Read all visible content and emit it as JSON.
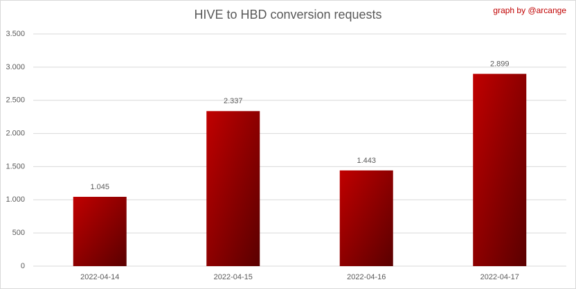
{
  "chart_data": {
    "type": "bar",
    "title": "HIVE to HBD conversion requests",
    "annotation": "graph by @arcange",
    "categories": [
      "2022-04-14",
      "2022-04-15",
      "2022-04-16",
      "2022-04-17"
    ],
    "values": [
      1045,
      2337,
      1443,
      2899
    ],
    "value_labels": [
      "1.045",
      "2.337",
      "1.443",
      "2.899"
    ],
    "color": "#c00000",
    "ylim": [
      0,
      3500
    ],
    "yticks": [
      0,
      500,
      {
        "value": 1000,
        "label": "1.000"
      },
      {
        "value": 1500,
        "label": "1.500"
      },
      {
        "value": 2000,
        "label": "2.000"
      },
      {
        "value": 2500,
        "label": "2.500"
      },
      {
        "value": 3000,
        "label": "3.000"
      },
      {
        "value": 3500,
        "label": "3.500"
      }
    ],
    "grid": true
  }
}
